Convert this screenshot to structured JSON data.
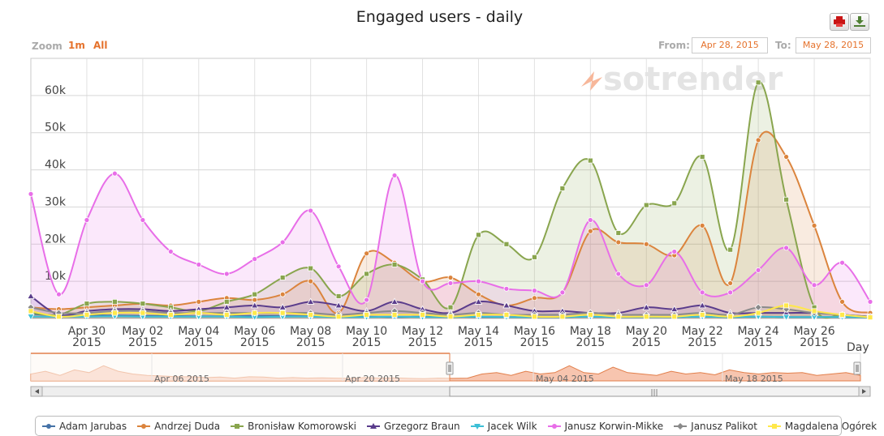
{
  "title": "Engaged users - daily",
  "toolbar": {
    "print_icon": "print-icon",
    "download_icon": "download-icon"
  },
  "zoom": {
    "label": "Zoom",
    "options": [
      "1m",
      "All"
    ]
  },
  "range": {
    "from_label": "From:",
    "from_value": "Apr 28, 2015",
    "to_label": "To:",
    "to_value": "May 28, 2015"
  },
  "watermark": "sotrender",
  "navigator": {
    "labels": [
      "Apr 06 2015",
      "Apr 20 2015",
      "May 04 2015",
      "May 18 2015"
    ],
    "scroll_grip": "|||"
  },
  "chart_data": {
    "type": "area",
    "title": "Engaged users - daily",
    "xlabel": "Day",
    "ylabel": "",
    "x": [
      "Apr 28",
      "Apr 29",
      "Apr 30",
      "May 01",
      "May 02",
      "May 03",
      "May 04",
      "May 05",
      "May 06",
      "May 07",
      "May 08",
      "May 09",
      "May 10",
      "May 11",
      "May 12",
      "May 13",
      "May 14",
      "May 15",
      "May 16",
      "May 17",
      "May 18",
      "May 19",
      "May 20",
      "May 21",
      "May 22",
      "May 23",
      "May 24",
      "May 25",
      "May 26",
      "May 27",
      "May 28"
    ],
    "x_tick_labels": [
      {
        "line1": "Apr 30",
        "line2": "2015"
      },
      {
        "line1": "May 02",
        "line2": "2015"
      },
      {
        "line1": "May 04",
        "line2": "2015"
      },
      {
        "line1": "May 06",
        "line2": "2015"
      },
      {
        "line1": "May 08",
        "line2": "2015"
      },
      {
        "line1": "May 10",
        "line2": "2015"
      },
      {
        "line1": "May 12",
        "line2": "2015"
      },
      {
        "line1": "May 14",
        "line2": "2015"
      },
      {
        "line1": "May 16",
        "line2": "2015"
      },
      {
        "line1": "May 18",
        "line2": "2015"
      },
      {
        "line1": "May 20",
        "line2": "2015"
      },
      {
        "line1": "May 22",
        "line2": "2015"
      },
      {
        "line1": "May 24",
        "line2": "2015"
      },
      {
        "line1": "May 26",
        "line2": "2015"
      }
    ],
    "y_ticks": [
      "10k",
      "20k",
      "30k",
      "40k",
      "50k",
      "60k"
    ],
    "ylim": [
      0,
      70000
    ],
    "grid": true,
    "legend_position": "bottom",
    "series": [
      {
        "name": "Adam Jarubas",
        "color": "#4572a7",
        "marker": "circle",
        "values": [
          1200,
          800,
          900,
          800,
          700,
          700,
          600,
          600,
          700,
          700,
          600,
          500,
          500,
          400,
          500,
          500,
          400,
          400,
          400,
          400,
          500,
          400,
          400,
          400,
          500,
          400,
          500,
          400,
          400,
          400,
          300
        ]
      },
      {
        "name": "Andrzej Duda",
        "color": "#db843d",
        "marker": "circle",
        "values": [
          3000,
          2500,
          3000,
          3500,
          4000,
          3500,
          4500,
          5500,
          5000,
          6500,
          10000,
          1500,
          17500,
          15000,
          10000,
          11000,
          6500,
          3500,
          5500,
          7000,
          23500,
          20500,
          20000,
          17000,
          25000,
          9500,
          48000,
          43500,
          25000,
          4500,
          1500
        ]
      },
      {
        "name": "Bronisław Komorowski",
        "color": "#89a54e",
        "marker": "square",
        "values": [
          1500,
          1000,
          4000,
          4500,
          4000,
          3000,
          2000,
          4500,
          6500,
          11000,
          13500,
          6000,
          12000,
          14500,
          10500,
          3000,
          22500,
          20000,
          16500,
          35000,
          42500,
          23000,
          30500,
          31000,
          43500,
          18500,
          63500,
          32000,
          3000,
          1000,
          500
        ]
      },
      {
        "name": "Grzegorz Braun",
        "color": "#5a3c8c",
        "marker": "triangle",
        "values": [
          6000,
          1000,
          2000,
          2500,
          2500,
          2000,
          2500,
          3000,
          3500,
          3000,
          4500,
          3500,
          2000,
          4500,
          2500,
          1500,
          4500,
          3500,
          2000,
          2000,
          1500,
          1500,
          3000,
          2500,
          3500,
          1500,
          1500,
          1500,
          1500,
          1000,
          500
        ]
      },
      {
        "name": "Jacek Wilk",
        "color": "#3cbfd6",
        "marker": "triangle-down",
        "values": [
          500,
          500,
          500,
          600,
          500,
          500,
          500,
          500,
          400,
          500,
          500,
          400,
          400,
          500,
          400,
          400,
          500,
          400,
          400,
          400,
          500,
          400,
          400,
          400,
          500,
          400,
          500,
          400,
          400,
          400,
          300
        ]
      },
      {
        "name": "Janusz Korwin-Mikke",
        "color": "#e86ee8",
        "marker": "circle",
        "values": [
          33500,
          6500,
          26500,
          39000,
          26500,
          18000,
          14500,
          12000,
          16000,
          20500,
          29000,
          14000,
          5000,
          38500,
          10000,
          9500,
          10000,
          8000,
          7500,
          7000,
          26500,
          12000,
          9000,
          18000,
          7000,
          7000,
          13000,
          19000,
          9000,
          15000,
          4500
        ]
      },
      {
        "name": "Janusz Palikot",
        "color": "#8a8a8a",
        "marker": "diamond",
        "values": [
          3000,
          1500,
          1500,
          2000,
          2000,
          1500,
          1500,
          1500,
          1500,
          1500,
          1500,
          1000,
          1500,
          2000,
          1500,
          1000,
          1500,
          1000,
          1000,
          1000,
          1500,
          1000,
          1000,
          1000,
          1500,
          1000,
          3000,
          2500,
          1500,
          1000,
          500
        ]
      },
      {
        "name": "Magdalena Ogórek",
        "color": "#ffe84a",
        "marker": "square",
        "values": [
          2000,
          500,
          1000,
          1500,
          1500,
          1000,
          1500,
          1000,
          1500,
          1500,
          1000,
          500,
          1000,
          1000,
          1000,
          500,
          1000,
          1000,
          500,
          500,
          1000,
          500,
          500,
          500,
          1000,
          500,
          1500,
          3500,
          2000,
          1000,
          300
        ]
      }
    ]
  }
}
